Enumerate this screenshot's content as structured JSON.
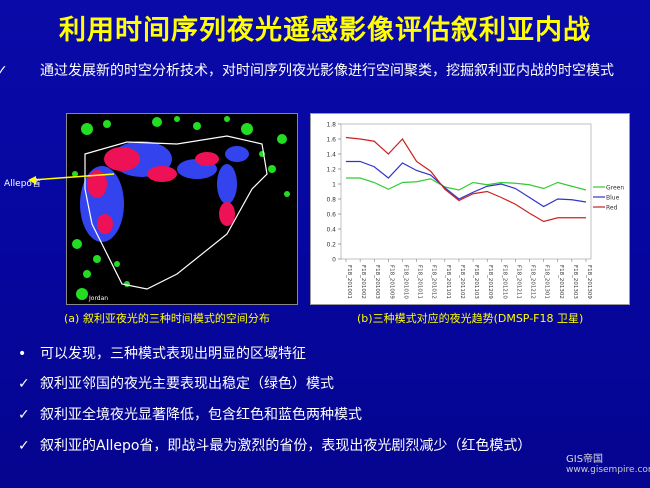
{
  "title": "利用时间序列夜光遥感影像评估叙利亚内战",
  "intro": "通过发展新的时空分析技术，对时间序列夜光影像进行空间聚类，挖掘叙利亚内战的时空模式",
  "map": {
    "allepo_label": "Allepo省",
    "jordan_label": "Jordan",
    "caption": "(a) 叙利亚夜光的三种时间模式的空间分布"
  },
  "chart_caption": "(b)三种模式对应的夜光趋势(DMSP-F18 卫星)",
  "chart_data": {
    "type": "line",
    "categories": [
      "F18_201001",
      "F18_201002",
      "F18_201003",
      "F18_201009",
      "F18_201010",
      "F18_201011",
      "F18_201012",
      "F18_201101",
      "F18_201102",
      "F18_201103",
      "F18_201209",
      "F18_201210",
      "F18_201211",
      "F18_201212",
      "F18_201301",
      "F18_201302",
      "F18_201303",
      "F18_201309"
    ],
    "ylim": [
      0,
      1.8
    ],
    "yticks": [
      "0",
      "0.2",
      "0.4",
      "0.6",
      "0.8",
      "1",
      "1.2",
      "1.4",
      "1.6",
      "1.8"
    ],
    "series": [
      {
        "name": "Green",
        "color": "#33cc33",
        "values": [
          1.08,
          1.08,
          1.02,
          0.93,
          1.02,
          1.03,
          1.07,
          0.96,
          0.92,
          1.02,
          0.99,
          1.02,
          1.01,
          0.99,
          0.94,
          1.02,
          0.97,
          0.92
        ]
      },
      {
        "name": "Blue",
        "color": "#3333cc",
        "values": [
          1.3,
          1.3,
          1.23,
          1.08,
          1.28,
          1.18,
          1.12,
          0.95,
          0.8,
          0.89,
          0.97,
          1.0,
          0.94,
          0.82,
          0.7,
          0.8,
          0.79,
          0.76
        ]
      },
      {
        "name": "Red",
        "color": "#cc2222",
        "values": [
          1.62,
          1.6,
          1.57,
          1.4,
          1.6,
          1.3,
          1.17,
          0.93,
          0.78,
          0.87,
          0.9,
          0.82,
          0.73,
          0.61,
          0.5,
          0.55,
          0.55,
          0.55
        ]
      }
    ]
  },
  "bullets": [
    {
      "mark": "•",
      "text": "可以发现，三种模式表现出明显的区域特征"
    },
    {
      "mark": "✓",
      "text": "叙利亚邻国的夜光主要表现出稳定（绿色）模式"
    },
    {
      "mark": "✓",
      "text": "叙利亚全境夜光显著降低，包含红色和蓝色两种模式"
    },
    {
      "mark": "✓",
      "text": "叙利亚的Allepo省，即战斗最为激烈的省份，表现出夜光剧烈减少（红色模式）"
    }
  ],
  "check_mark": "✓",
  "logo": "GIS帝国",
  "logo_url": "www.gisempire.com"
}
